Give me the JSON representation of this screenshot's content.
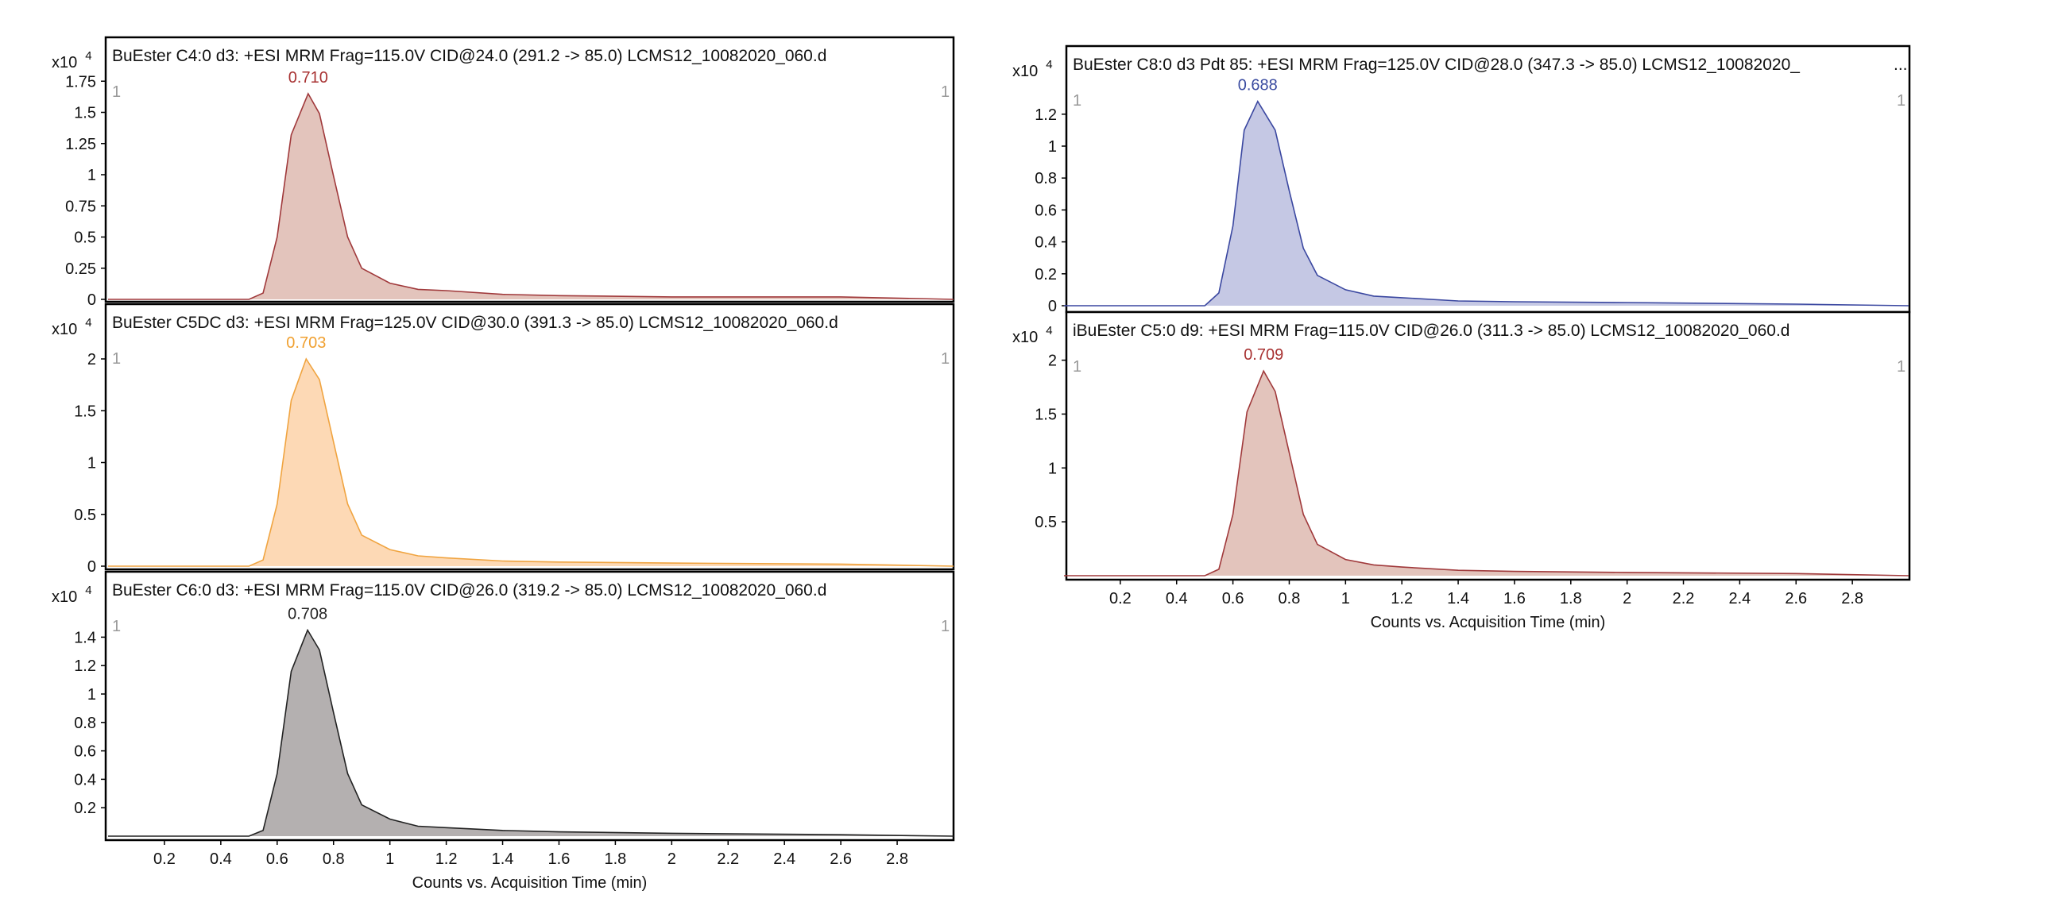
{
  "chart_data": [
    {
      "type": "area",
      "title": "BuEster C4:0 d3: +ESI MRM Frag=115.0V CID@24.0 (291.2 -> 85.0) LCMS12_10082020_060.d",
      "y_multiplier": "x10",
      "y_exponent": "4",
      "range_marker": "1",
      "peak_label": "0.710",
      "yticks": [
        "0",
        "0.25",
        "0.5",
        "0.75",
        "1",
        "1.25",
        "1.5",
        "1.75"
      ],
      "ytick_values": [
        0,
        0.25,
        0.5,
        0.75,
        1,
        1.25,
        1.5,
        1.75
      ],
      "xlim": [
        0,
        3
      ],
      "x": [
        0,
        0.5,
        0.55,
        0.6,
        0.65,
        0.71,
        0.75,
        0.8,
        0.85,
        0.9,
        1.0,
        1.1,
        1.2,
        1.4,
        1.6,
        2.0,
        2.6,
        3.0
      ],
      "values": [
        0,
        0,
        0.05,
        0.5,
        1.32,
        1.65,
        1.49,
        0.99,
        0.5,
        0.25,
        0.13,
        0.08,
        0.07,
        0.04,
        0.03,
        0.02,
        0.02,
        0
      ],
      "fill": "#e3c4bc",
      "stroke": "#a0393b",
      "label_color": "#a83232"
    },
    {
      "type": "area",
      "title": "BuEster C5DC d3: +ESI MRM Frag=125.0V CID@30.0 (391.3 -> 85.0) LCMS12_10082020_060.d",
      "y_multiplier": "x10",
      "y_exponent": "4",
      "range_marker": "1",
      "peak_label": "0.703",
      "yticks": [
        "0",
        "0.5",
        "1",
        "1.5",
        "2"
      ],
      "ytick_values": [
        0,
        0.5,
        1,
        1.5,
        2
      ],
      "xlim": [
        0,
        3
      ],
      "x": [
        0,
        0.5,
        0.55,
        0.6,
        0.65,
        0.703,
        0.75,
        0.8,
        0.85,
        0.9,
        1.0,
        1.1,
        1.2,
        1.4,
        1.6,
        2.0,
        2.6,
        3.0
      ],
      "values": [
        0,
        0,
        0.06,
        0.6,
        1.6,
        2.0,
        1.8,
        1.2,
        0.6,
        0.3,
        0.16,
        0.1,
        0.08,
        0.05,
        0.04,
        0.03,
        0.02,
        0
      ],
      "fill": "#fdd9b5",
      "stroke": "#f0a440",
      "label_color": "#f0a030"
    },
    {
      "type": "area",
      "title": "BuEster C6:0 d3: +ESI MRM Frag=115.0V CID@26.0 (319.2 -> 85.0) LCMS12_10082020_060.d",
      "y_multiplier": "x10",
      "y_exponent": "4",
      "range_marker": "1",
      "peak_label": "0.708",
      "yticks": [
        "0.2",
        "0.4",
        "0.6",
        "0.8",
        "1",
        "1.2",
        "1.4"
      ],
      "ytick_values": [
        0.2,
        0.4,
        0.6,
        0.8,
        1,
        1.2,
        1.4
      ],
      "xlim": [
        0,
        3
      ],
      "xticks": [
        "0.2",
        "0.4",
        "0.6",
        "0.8",
        "1",
        "1.2",
        "1.4",
        "1.6",
        "1.8",
        "2",
        "2.2",
        "2.4",
        "2.6",
        "2.8"
      ],
      "xlabel": "Counts vs. Acquisition Time (min)",
      "x": [
        0,
        0.5,
        0.55,
        0.6,
        0.65,
        0.708,
        0.75,
        0.8,
        0.85,
        0.9,
        1.0,
        1.1,
        1.2,
        1.4,
        1.6,
        2.0,
        2.6,
        3.0
      ],
      "values": [
        0,
        0,
        0.04,
        0.44,
        1.16,
        1.45,
        1.31,
        0.87,
        0.44,
        0.22,
        0.12,
        0.07,
        0.06,
        0.04,
        0.03,
        0.02,
        0.01,
        0
      ],
      "fill": "#b4b0b0",
      "stroke": "#222222",
      "label_color": "#222222"
    },
    {
      "type": "area",
      "title": "BuEster C8:0 d3 Pdt 85: +ESI MRM Frag=125.0V CID@28.0 (347.3 -> 85.0) LCMS12_10082020_",
      "title_overflow": "...",
      "y_multiplier": "x10",
      "y_exponent": "4",
      "range_marker": "1",
      "peak_label": "0.688",
      "yticks": [
        "0",
        "0.2",
        "0.4",
        "0.6",
        "0.8",
        "1",
        "1.2"
      ],
      "ytick_values": [
        0,
        0.2,
        0.4,
        0.6,
        0.8,
        1,
        1.2
      ],
      "xlim": [
        0,
        3
      ],
      "x": [
        0,
        0.5,
        0.55,
        0.6,
        0.64,
        0.688,
        0.75,
        0.8,
        0.85,
        0.9,
        1.0,
        1.1,
        1.2,
        1.4,
        1.6,
        2.0,
        2.6,
        3.0
      ],
      "values": [
        0,
        0,
        0.08,
        0.5,
        1.1,
        1.28,
        1.1,
        0.72,
        0.36,
        0.19,
        0.1,
        0.06,
        0.05,
        0.03,
        0.025,
        0.02,
        0.01,
        0
      ],
      "fill": "#c5c8e4",
      "stroke": "#3a47a0",
      "label_color": "#3a4ba0"
    },
    {
      "type": "area",
      "title": "iBuEster C5:0 d9: +ESI MRM Frag=115.0V CID@26.0 (311.3 -> 85.0) LCMS12_10082020_060.d",
      "y_multiplier": "x10",
      "y_exponent": "4",
      "range_marker": "1",
      "peak_label": "0.709",
      "yticks": [
        "0.5",
        "1",
        "1.5",
        "2"
      ],
      "ytick_values": [
        0.5,
        1,
        1.5,
        2
      ],
      "xlim": [
        0,
        3
      ],
      "xticks": [
        "0.2",
        "0.4",
        "0.6",
        "0.8",
        "1",
        "1.2",
        "1.4",
        "1.6",
        "1.8",
        "2",
        "2.2",
        "2.4",
        "2.6",
        "2.8"
      ],
      "xlabel": "Counts vs. Acquisition Time (min)",
      "x": [
        0,
        0.5,
        0.55,
        0.6,
        0.65,
        0.709,
        0.75,
        0.8,
        0.85,
        0.9,
        1.0,
        1.1,
        1.2,
        1.4,
        1.6,
        2.0,
        2.6,
        3.0
      ],
      "values": [
        0,
        0,
        0.06,
        0.57,
        1.52,
        1.9,
        1.71,
        1.14,
        0.57,
        0.29,
        0.15,
        0.1,
        0.08,
        0.05,
        0.04,
        0.03,
        0.02,
        0
      ],
      "fill": "#e3c4bc",
      "stroke": "#a0393b",
      "label_color": "#a83232"
    }
  ]
}
